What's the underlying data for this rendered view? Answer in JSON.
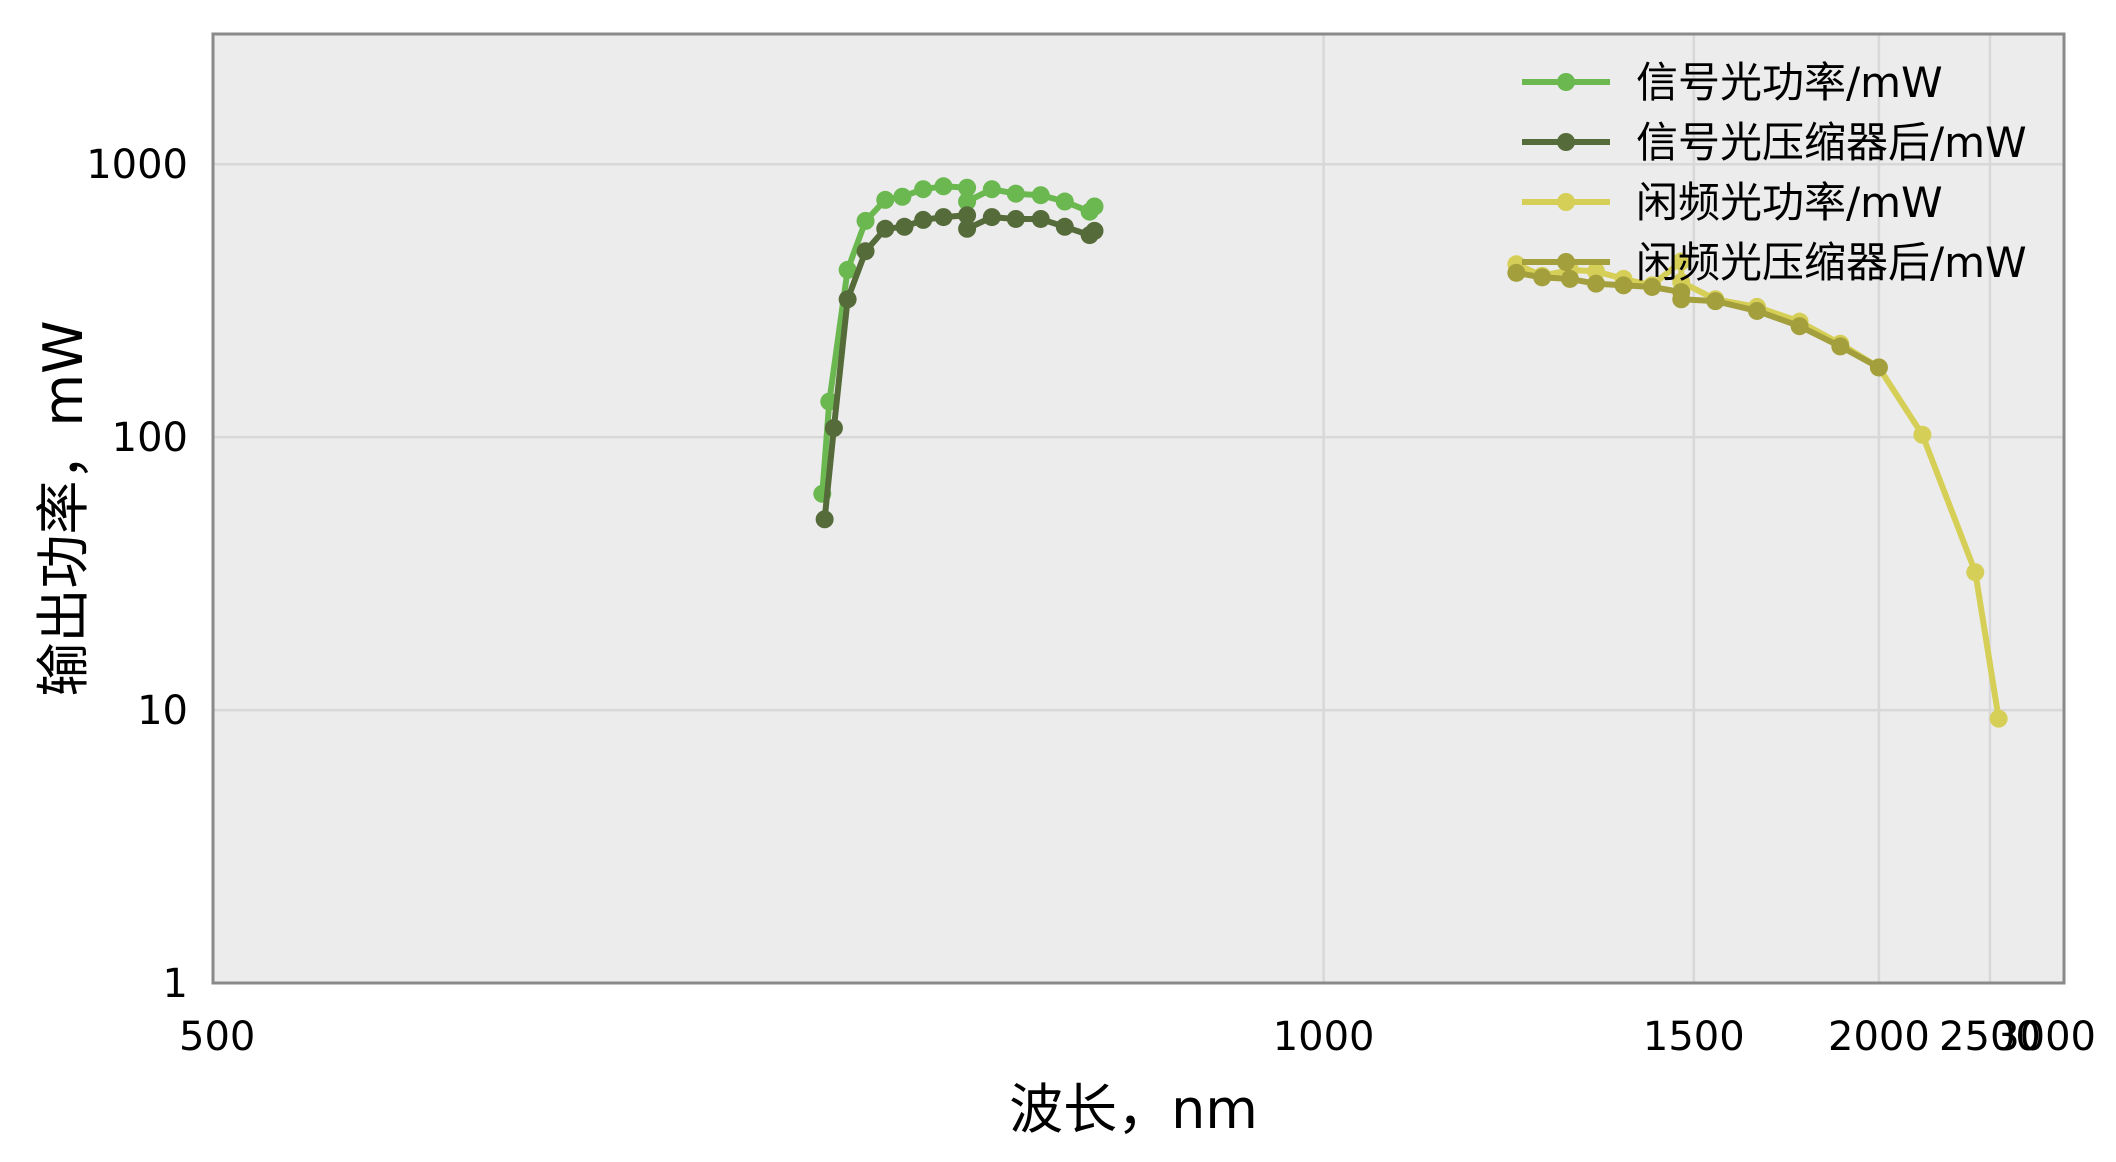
{
  "chart_data": {
    "type": "line",
    "title": "",
    "xlabel": "波长，nm",
    "ylabel": "输出功率，mW",
    "x_scale": "reciprocal",
    "y_scale": "log",
    "xlim": [
      500,
      3000
    ],
    "ylim": [
      1,
      3000
    ],
    "x_ticks": [
      "500",
      "1000",
      "1500",
      "2000",
      "2500",
      "3000"
    ],
    "y_ticks": [
      "1",
      "10",
      "100",
      "1000"
    ],
    "grid": true,
    "legend_position": "top-right",
    "colors": {
      "background": "#ececec",
      "grid": "#d8d8d8",
      "frame": "#8a8a8a"
    },
    "series": [
      {
        "name": "信号光功率/mW",
        "color": "#6ab84f",
        "x": [
          689,
          692,
          700,
          708,
          717,
          725,
          735,
          745,
          757,
          757,
          770,
          783,
          797,
          811,
          826,
          829
        ],
        "y": [
          62,
          135,
          410,
          620,
          740,
          760,
          810,
          830,
          820,
          730,
          810,
          780,
          770,
          730,
          670,
          700
        ]
      },
      {
        "name": "信号光压缩器后/mW",
        "color": "#556b3a",
        "x": [
          690,
          694,
          700,
          708,
          717,
          726,
          735,
          745,
          757,
          757,
          770,
          783,
          797,
          811,
          826,
          829
        ],
        "y": [
          50,
          108,
          320,
          480,
          580,
          590,
          625,
          640,
          650,
          580,
          640,
          630,
          630,
          590,
          550,
          570
        ]
      },
      {
        "name": "闲频光功率/mW",
        "color": "#d6cf57",
        "x": [
          1210,
          1245,
          1285,
          1325,
          1370,
          1420,
          1475,
          1475,
          1545,
          1640,
          1750,
          1870,
          2000,
          2170,
          2420,
          2550
        ],
        "y": [
          430,
          390,
          410,
          405,
          380,
          360,
          440,
          370,
          320,
          300,
          265,
          220,
          180,
          102,
          32,
          9.3
        ]
      },
      {
        "name": "闲频光压缩器后/mW",
        "color": "#a39f3c",
        "x": [
          1210,
          1245,
          1285,
          1325,
          1370,
          1420,
          1475,
          1475,
          1545,
          1640,
          1750,
          1870,
          2000
        ],
        "y": [
          400,
          385,
          380,
          365,
          360,
          355,
          340,
          320,
          315,
          290,
          255,
          215,
          180
        ]
      }
    ]
  }
}
